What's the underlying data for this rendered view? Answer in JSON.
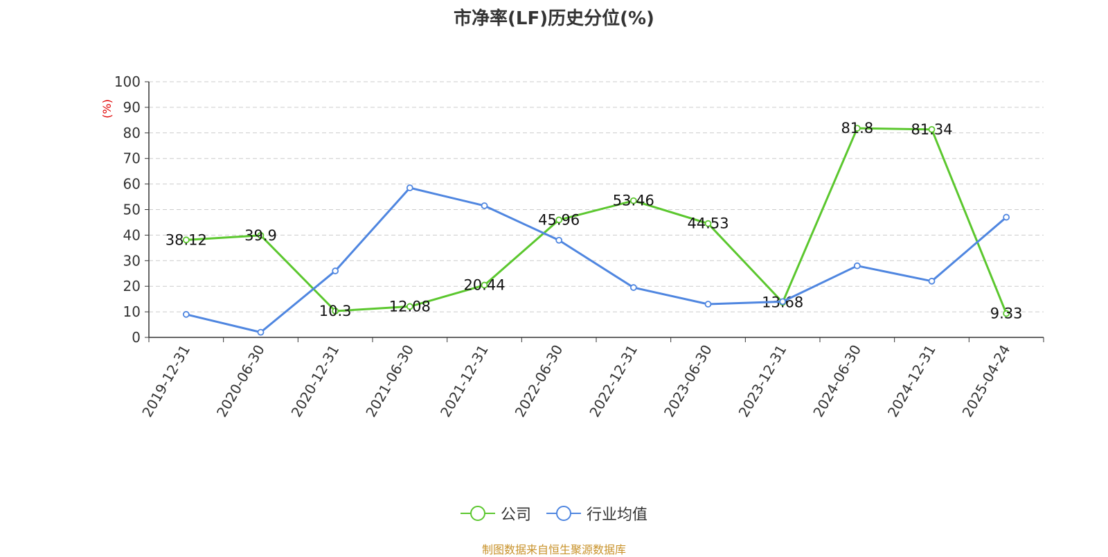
{
  "chart_data": {
    "type": "line",
    "title": "市净率(LF)历史分位(%)",
    "ylabel": "(%)",
    "xlabel": "",
    "categories": [
      "2019-12-31",
      "2020-06-30",
      "2020-12-31",
      "2021-06-30",
      "2021-12-31",
      "2022-06-30",
      "2022-12-31",
      "2023-06-30",
      "2023-12-31",
      "2024-06-30",
      "2024-12-31",
      "2025-04-24"
    ],
    "ylim": [
      0,
      100
    ],
    "yticks": [
      0,
      10,
      20,
      30,
      40,
      50,
      60,
      70,
      80,
      90,
      100
    ],
    "grid": true,
    "legend_position": "bottom",
    "series": [
      {
        "name": "公司",
        "color": "#5bc72e",
        "values": [
          38.12,
          39.9,
          10.3,
          12.08,
          20.44,
          45.96,
          53.46,
          44.53,
          13.68,
          81.8,
          81.34,
          9.33
        ],
        "labels": [
          "38.12",
          "39.9",
          "10.3",
          "12.08",
          "20.44",
          "45.96",
          "53.46",
          "44.53",
          "13.68",
          "81.8",
          "81.34",
          "9.33"
        ]
      },
      {
        "name": "行业均值",
        "color": "#4f86e0",
        "values": [
          9.0,
          2.0,
          26.0,
          58.5,
          51.5,
          38.0,
          19.5,
          13.0,
          14.0,
          28.0,
          22.0,
          47.0
        ]
      }
    ]
  },
  "footer": {
    "source": "制图数据来自恒生聚源数据库"
  }
}
